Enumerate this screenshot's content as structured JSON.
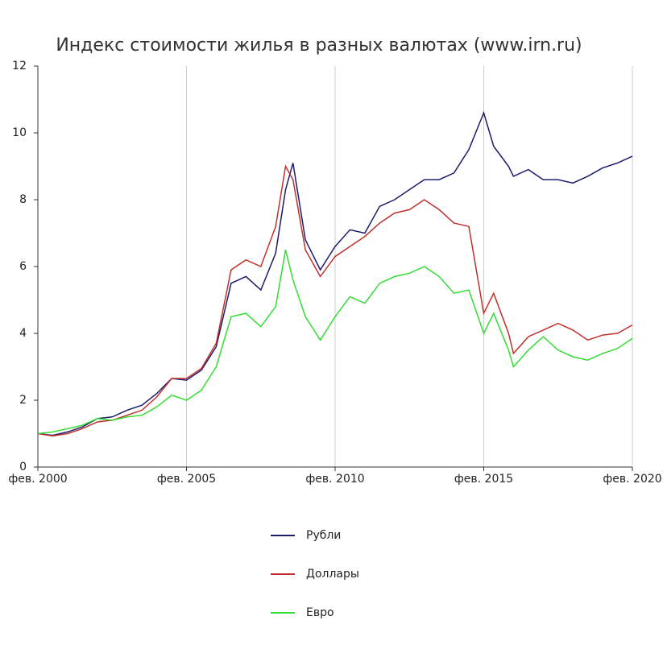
{
  "chart_data": {
    "type": "line",
    "title": "Индекс стоимости жилья в разных валютах (www.irn.ru)",
    "x": [
      "2000-02",
      "2000-08",
      "2001-02",
      "2001-08",
      "2002-02",
      "2002-08",
      "2003-02",
      "2003-08",
      "2004-02",
      "2004-08",
      "2005-02",
      "2005-08",
      "2006-02",
      "2006-08",
      "2007-02",
      "2007-08",
      "2008-02",
      "2008-06",
      "2008-09",
      "2009-02",
      "2009-08",
      "2010-02",
      "2010-08",
      "2011-02",
      "2011-08",
      "2012-02",
      "2012-08",
      "2013-02",
      "2013-08",
      "2014-02",
      "2014-08",
      "2015-02",
      "2015-06",
      "2015-12",
      "2016-02",
      "2016-08",
      "2017-02",
      "2017-08",
      "2018-02",
      "2018-08",
      "2019-02",
      "2019-08",
      "2020-02"
    ],
    "series": [
      {
        "name": "Рубли",
        "color": "#1c1c6e",
        "values": [
          1,
          0.95,
          1.05,
          1.2,
          1.45,
          1.5,
          1.7,
          1.85,
          2.2,
          2.65,
          2.6,
          2.9,
          3.6,
          5.5,
          5.7,
          5.3,
          6.4,
          8.3,
          9.1,
          6.8,
          5.9,
          6.6,
          7.1,
          7.0,
          7.8,
          8.0,
          8.3,
          8.6,
          8.6,
          8.8,
          9.5,
          10.6,
          9.6,
          9.0,
          8.7,
          8.9,
          8.6,
          8.6,
          8.5,
          8.7,
          8.95,
          9.1,
          9.3
        ]
      },
      {
        "name": "Доллары",
        "color": "#c0302c",
        "values": [
          1,
          0.93,
          1.0,
          1.15,
          1.35,
          1.4,
          1.55,
          1.7,
          2.1,
          2.65,
          2.65,
          2.95,
          3.7,
          5.9,
          6.2,
          6.0,
          7.2,
          9.0,
          8.6,
          6.5,
          5.7,
          6.3,
          6.6,
          6.9,
          7.3,
          7.6,
          7.7,
          8.0,
          7.7,
          7.3,
          7.2,
          4.6,
          5.2,
          4.0,
          3.4,
          3.9,
          4.1,
          4.3,
          4.1,
          3.8,
          3.95,
          4.0,
          4.25
        ]
      },
      {
        "name": "Евро",
        "color": "#33dd33",
        "values": [
          1,
          1.05,
          1.15,
          1.25,
          1.45,
          1.4,
          1.5,
          1.55,
          1.8,
          2.15,
          2.0,
          2.3,
          3.0,
          4.5,
          4.6,
          4.2,
          4.8,
          6.5,
          5.6,
          4.5,
          3.8,
          4.5,
          5.1,
          4.9,
          5.5,
          5.7,
          5.8,
          6.0,
          5.7,
          5.2,
          5.3,
          4.0,
          4.6,
          3.5,
          3.0,
          3.5,
          3.9,
          3.5,
          3.3,
          3.2,
          3.4,
          3.55,
          3.85
        ]
      }
    ],
    "xlim": [
      "2000-02",
      "2020-02"
    ],
    "xticks": [
      {
        "value": "2000-02",
        "label": "фев. 2000"
      },
      {
        "value": "2005-02",
        "label": "фев. 2005"
      },
      {
        "value": "2010-02",
        "label": "фев. 2010"
      },
      {
        "value": "2015-02",
        "label": "фев. 2015"
      },
      {
        "value": "2020-02",
        "label": "фев. 2020"
      }
    ],
    "ylim": [
      0,
      12
    ],
    "yticks": [
      0,
      2,
      4,
      6,
      8,
      10,
      12
    ],
    "grid": "x"
  }
}
